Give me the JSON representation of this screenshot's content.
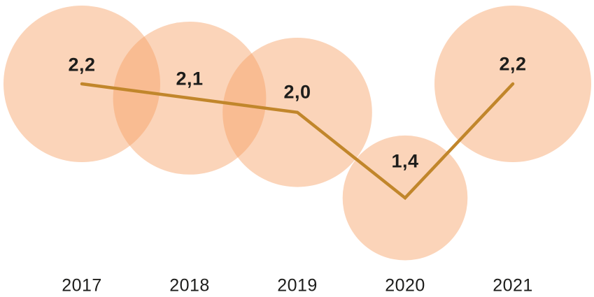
{
  "chart_data": {
    "type": "line",
    "subtype": "bubble-line-combo",
    "categories": [
      "2017",
      "2018",
      "2019",
      "2020",
      "2021"
    ],
    "values": [
      2.2,
      2.1,
      2.0,
      1.4,
      2.2
    ],
    "value_labels": [
      "2,2",
      "2,1",
      "2,0",
      "1,4",
      "2,2"
    ],
    "title": "",
    "xlabel": "",
    "ylabel": "",
    "ylim": [
      1.0,
      2.4
    ],
    "grid": false,
    "legend": "none",
    "bubble_size_meaning": "proportional to value",
    "colors": {
      "bubble_fill": "#f79f64",
      "line": "#c1862b",
      "label_text": "#1d1d1b",
      "axis_text": "#1d1d1b",
      "background": "#ffffff"
    }
  }
}
